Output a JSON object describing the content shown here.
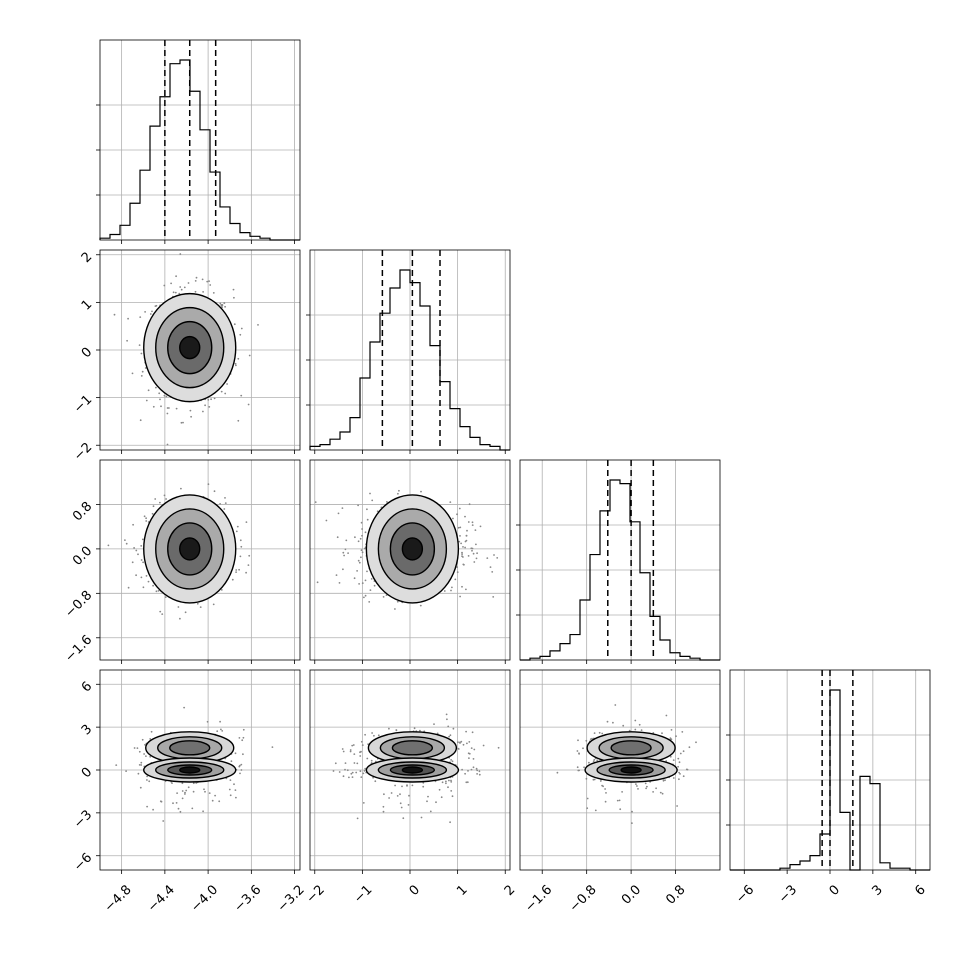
{
  "chart_data": {
    "type": "corner",
    "parameters": [
      {
        "range": [
          -5.0,
          -3.15
        ],
        "ticks": [
          -4.8,
          -4.4,
          -4.0,
          -3.6,
          -3.2
        ],
        "tick_labels": [
          "−4.8",
          "−4.4",
          "−4.0",
          "−3.6",
          "−3.2"
        ],
        "mean": -4.17,
        "sd": 0.2,
        "quantiles": [
          -4.4,
          -4.17,
          -3.93
        ],
        "hist_edges": [
          -5.0,
          -3.15
        ],
        "hist_counts": [
          1,
          3,
          8,
          20,
          38,
          62,
          78,
          96,
          98,
          81,
          60,
          37,
          18,
          9,
          4,
          2,
          1,
          0,
          0,
          0
        ]
      },
      {
        "range": [
          -2.1,
          2.1
        ],
        "ticks": [
          -2,
          -1,
          0,
          1,
          2
        ],
        "tick_labels": [
          "−2",
          "−1",
          "0",
          "1",
          "2"
        ],
        "mean": 0.05,
        "sd": 0.6,
        "quantiles": [
          -0.58,
          0.05,
          0.63
        ],
        "hist_counts": [
          2,
          3,
          6,
          10,
          18,
          40,
          60,
          76,
          90,
          100,
          93,
          80,
          58,
          38,
          23,
          13,
          7,
          3,
          2,
          0
        ]
      },
      {
        "range": [
          -2.0,
          1.6
        ],
        "ticks": [
          -1.6,
          -0.8,
          0.0,
          0.8
        ],
        "tick_labels": [
          "−1.6",
          "−0.8",
          "0.0",
          "0.8"
        ],
        "mean": 0.0,
        "sd": 0.4,
        "quantiles": [
          -0.42,
          0.0,
          0.4
        ],
        "hist_counts": [
          0,
          1,
          2,
          5,
          9,
          14,
          33,
          58,
          82,
          99,
          97,
          76,
          48,
          24,
          11,
          4,
          2,
          1,
          0,
          0
        ]
      },
      {
        "range": [
          -7.0,
          7.0
        ],
        "ticks": [
          -6,
          -3,
          0,
          3,
          6
        ],
        "tick_labels": [
          "−6",
          "−3",
          "0",
          "3",
          "6"
        ],
        "bimodal": true,
        "quantiles": [
          -0.55,
          0.0,
          1.6
        ],
        "hist_counts": [
          0,
          0,
          0,
          0,
          0,
          1,
          3,
          5,
          8,
          20,
          100,
          32,
          0,
          52,
          48,
          4,
          1,
          1,
          0,
          0
        ]
      }
    ],
    "grid": true,
    "density_shading": "greyscale",
    "contour_levels": 4,
    "quantile_lines": "dashed"
  }
}
